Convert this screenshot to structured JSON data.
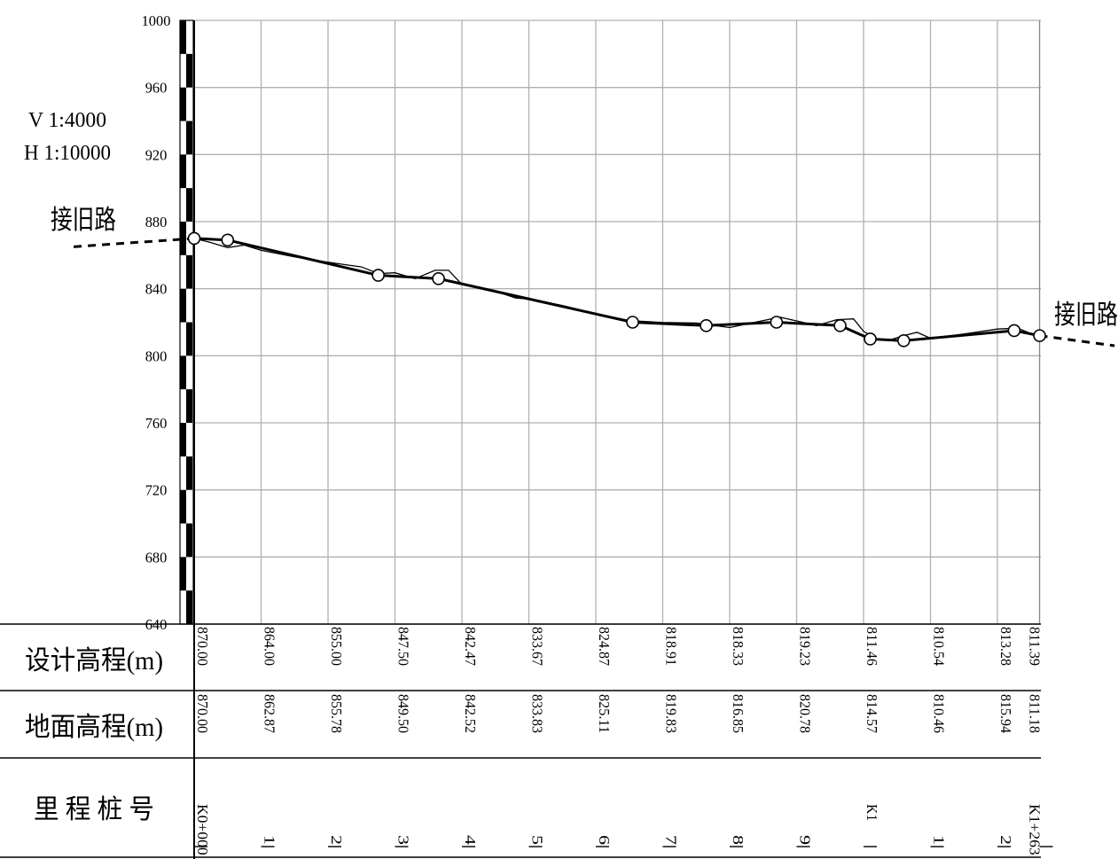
{
  "scale": {
    "vertical": "V 1:4000",
    "horizontal": "H 1:10000"
  },
  "connect_labels": {
    "start": "接旧路",
    "end": "接旧路"
  },
  "rows": {
    "design": "设计高程(m)",
    "ground": "地面高程(m)",
    "stake": "里 程 桩 号"
  },
  "chart_data": {
    "type": "line",
    "y_axis": {
      "range": [
        640,
        1000
      ],
      "ticks": [
        640,
        680,
        720,
        760,
        800,
        840,
        880,
        920,
        960,
        1000
      ]
    },
    "x_axis": {
      "range": [
        0,
        1263
      ],
      "unit": "m (chainage)"
    },
    "grid": true,
    "stations": [
      {
        "chainage": 0,
        "stake": "K0+000",
        "design": "870.00",
        "ground": "870.00"
      },
      {
        "chainage": 100,
        "stake": "1",
        "design": "864.00",
        "ground": "862.87"
      },
      {
        "chainage": 200,
        "stake": "2",
        "design": "855.00",
        "ground": "855.78"
      },
      {
        "chainage": 300,
        "stake": "3",
        "design": "847.50",
        "ground": "849.50"
      },
      {
        "chainage": 400,
        "stake": "4",
        "design": "842.47",
        "ground": "842.52"
      },
      {
        "chainage": 500,
        "stake": "5",
        "design": "833.67",
        "ground": "833.83"
      },
      {
        "chainage": 600,
        "stake": "6",
        "design": "824.87",
        "ground": "825.11"
      },
      {
        "chainage": 700,
        "stake": "7",
        "design": "818.91",
        "ground": "819.83"
      },
      {
        "chainage": 800,
        "stake": "8",
        "design": "818.33",
        "ground": "816.85"
      },
      {
        "chainage": 900,
        "stake": "9",
        "design": "819.23",
        "ground": "820.78"
      },
      {
        "chainage": 1000,
        "stake": "K1",
        "design": "811.46",
        "ground": "814.57"
      },
      {
        "chainage": 1100,
        "stake": "1",
        "design": "810.54",
        "ground": "810.46"
      },
      {
        "chainage": 1200,
        "stake": "2",
        "design": "813.28",
        "ground": "815.94"
      },
      {
        "chainage": 1263,
        "stake": "K1+263",
        "design": "811.39",
        "ground": "811.18"
      }
    ],
    "vertical_curve_points": [
      {
        "chainage": 0,
        "elevation": 870
      },
      {
        "chainage": 50,
        "elevation": 869
      },
      {
        "chainage": 275,
        "elevation": 848
      },
      {
        "chainage": 365,
        "elevation": 846
      },
      {
        "chainage": 655,
        "elevation": 820
      },
      {
        "chainage": 765,
        "elevation": 818
      },
      {
        "chainage": 870,
        "elevation": 820
      },
      {
        "chainage": 965,
        "elevation": 818
      },
      {
        "chainage": 1010,
        "elevation": 810
      },
      {
        "chainage": 1060,
        "elevation": 809
      },
      {
        "chainage": 1225,
        "elevation": 815
      },
      {
        "chainage": 1263,
        "elevation": 812
      }
    ],
    "ground_profile": [
      [
        0,
        870.0
      ],
      [
        25,
        867.5
      ],
      [
        50,
        864.5
      ],
      [
        75,
        866.0
      ],
      [
        100,
        862.87
      ],
      [
        150,
        859.0
      ],
      [
        200,
        855.78
      ],
      [
        250,
        853.0
      ],
      [
        275,
        849.0
      ],
      [
        300,
        849.5
      ],
      [
        330,
        846.0
      ],
      [
        360,
        851.0
      ],
      [
        380,
        851.0
      ],
      [
        400,
        842.52
      ],
      [
        450,
        838.5
      ],
      [
        480,
        834.5
      ],
      [
        500,
        833.83
      ],
      [
        550,
        830.0
      ],
      [
        600,
        825.11
      ],
      [
        650,
        821.0
      ],
      [
        700,
        819.83
      ],
      [
        750,
        819.5
      ],
      [
        800,
        816.85
      ],
      [
        850,
        821.0
      ],
      [
        875,
        823.0
      ],
      [
        900,
        820.78
      ],
      [
        930,
        818.0
      ],
      [
        960,
        821.5
      ],
      [
        985,
        822.0
      ],
      [
        1000,
        814.57
      ],
      [
        1020,
        810.0
      ],
      [
        1040,
        809.5
      ],
      [
        1060,
        812.0
      ],
      [
        1080,
        814.0
      ],
      [
        1100,
        810.46
      ],
      [
        1150,
        813.0
      ],
      [
        1200,
        815.94
      ],
      [
        1230,
        816.5
      ],
      [
        1263,
        811.18
      ]
    ],
    "connection_grade_lines": [
      {
        "from": [
          -180,
          865
        ],
        "to": [
          0,
          870
        ]
      },
      {
        "from": [
          1263,
          812
        ],
        "to": [
          1375,
          806
        ]
      }
    ]
  }
}
